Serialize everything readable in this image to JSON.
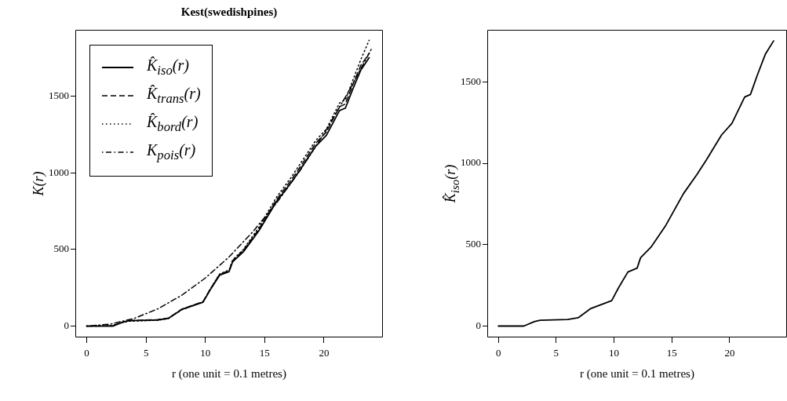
{
  "chart_data": [
    {
      "type": "line",
      "title": "Kest(swedishpines)",
      "xlabel": "r (one unit = 0.1 metres)",
      "ylabel": "K(r)",
      "xlim": [
        -0.96,
        24.96
      ],
      "ylim": [
        -74,
        1934
      ],
      "xticks": [
        0,
        5,
        10,
        15,
        20
      ],
      "yticks": [
        0,
        500,
        1000,
        1500
      ],
      "legend": "top left",
      "grid": false,
      "series": [
        {
          "name": "K̂$_{iso}$(r)",
          "color": "#000000",
          "line_style": "solid",
          "x": [
            0,
            2.2,
            3.1,
            3.6,
            6.0,
            6.9,
            8.0,
            9.8,
            10.4,
            11.2,
            12.0,
            12.3,
            13.2,
            14.5,
            16.0,
            17.2,
            18.0,
            19.3,
            20.2,
            21.3,
            21.8,
            22.4,
            23.1,
            23.8
          ],
          "values": [
            0,
            0,
            27,
            35,
            40,
            51,
            108,
            156,
            236,
            332,
            356,
            420,
            485,
            621,
            813,
            934,
            1022,
            1174,
            1246,
            1407,
            1423,
            1543,
            1672,
            1752
          ]
        },
        {
          "name": "K̂$_{trans}$(r)",
          "color": "#000000",
          "line_style": "dashed",
          "x": [
            0,
            2.2,
            3.1,
            3.6,
            6.0,
            6.9,
            8.0,
            9.8,
            10.4,
            11.2,
            12.0,
            12.3,
            13.2,
            14.5,
            16.0,
            17.2,
            18.0,
            19.3,
            20.2,
            21.3,
            21.8,
            22.4,
            23.1,
            23.8
          ],
          "values": [
            0,
            2,
            28,
            36,
            42,
            53,
            110,
            160,
            240,
            338,
            362,
            428,
            494,
            632,
            826,
            950,
            1040,
            1194,
            1268,
            1432,
            1450,
            1572,
            1702,
            1780
          ]
        },
        {
          "name": "K̂$_{bord}$(r)",
          "color": "#000000",
          "line_style": "dotted",
          "x": [
            0,
            2.2,
            3.1,
            3.6,
            6.0,
            6.9,
            8.0,
            9.8,
            10.4,
            11.2,
            12.0,
            12.3,
            13.2,
            14.5,
            16.0,
            17.2,
            18.0,
            19.3,
            20.2,
            21.3,
            21.8,
            22.4,
            23.1,
            23.8
          ],
          "values": [
            0,
            4,
            26,
            32,
            38,
            50,
            106,
            158,
            240,
            340,
            366,
            432,
            500,
            644,
            842,
            968,
            1060,
            1212,
            1286,
            1456,
            1478,
            1600,
            1740,
            1866
          ]
        },
        {
          "name": "K$_{pois}$(r)",
          "color": "#000000",
          "line_style": "dashdot",
          "x": [
            0,
            2,
            4,
            6,
            8,
            10,
            12,
            14,
            16,
            18,
            20,
            22,
            24
          ],
          "values": [
            0,
            13,
            50,
            113,
            201,
            314,
            452,
            616,
            804,
            1018,
            1257,
            1521,
            1810
          ]
        }
      ]
    },
    {
      "type": "line",
      "xlabel": "r (one unit = 0.1 metres)",
      "ylabel": "K̂$_{iso}$(r)",
      "xlim": [
        -0.96,
        24.96
      ],
      "ylim": [
        -70,
        1820
      ],
      "xticks": [
        0,
        5,
        10,
        15,
        20
      ],
      "yticks": [
        0,
        500,
        1000,
        1500
      ],
      "grid": false,
      "series": [
        {
          "color": "#000000",
          "line_style": "solid",
          "x": [
            0,
            2.2,
            3.1,
            3.6,
            6.0,
            6.9,
            8.0,
            9.8,
            10.4,
            11.2,
            12.0,
            12.3,
            13.2,
            14.5,
            16.0,
            17.2,
            18.0,
            19.3,
            20.2,
            21.3,
            21.8,
            22.4,
            23.1,
            23.8
          ],
          "values": [
            0,
            0,
            27,
            35,
            40,
            51,
            108,
            156,
            236,
            332,
            356,
            420,
            485,
            621,
            813,
            934,
            1022,
            1174,
            1246,
            1407,
            1423,
            1543,
            1672,
            1752
          ]
        }
      ]
    }
  ]
}
